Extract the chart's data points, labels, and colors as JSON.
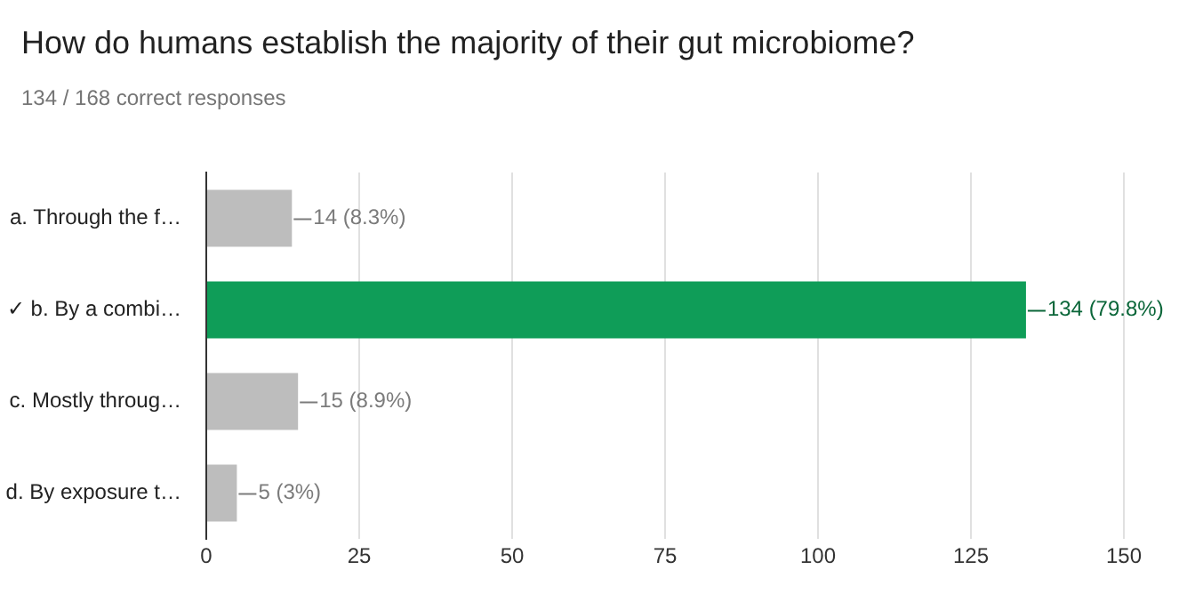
{
  "chart_data": {
    "type": "bar",
    "orientation": "horizontal",
    "title": "How do humans establish the majority of their gut microbiome?",
    "subtitle": "134 / 168 correct responses",
    "categories": [
      "a. Through the f…",
      "✓ b. By a combi…",
      "c. Mostly throug…",
      "d. By exposure t…"
    ],
    "values": [
      14,
      134,
      15,
      5
    ],
    "colors": [
      "#bdbdbd",
      "#0f9d58",
      "#bdbdbd",
      "#bdbdbd"
    ],
    "value_labels": [
      "14 (8.3%)",
      "134 (79.8%)",
      "15 (8.9%)",
      "5 (3%)"
    ],
    "xlim": [
      0,
      150
    ],
    "xticks": [
      0,
      25,
      50,
      75,
      100,
      125,
      150
    ],
    "grid": "x"
  }
}
